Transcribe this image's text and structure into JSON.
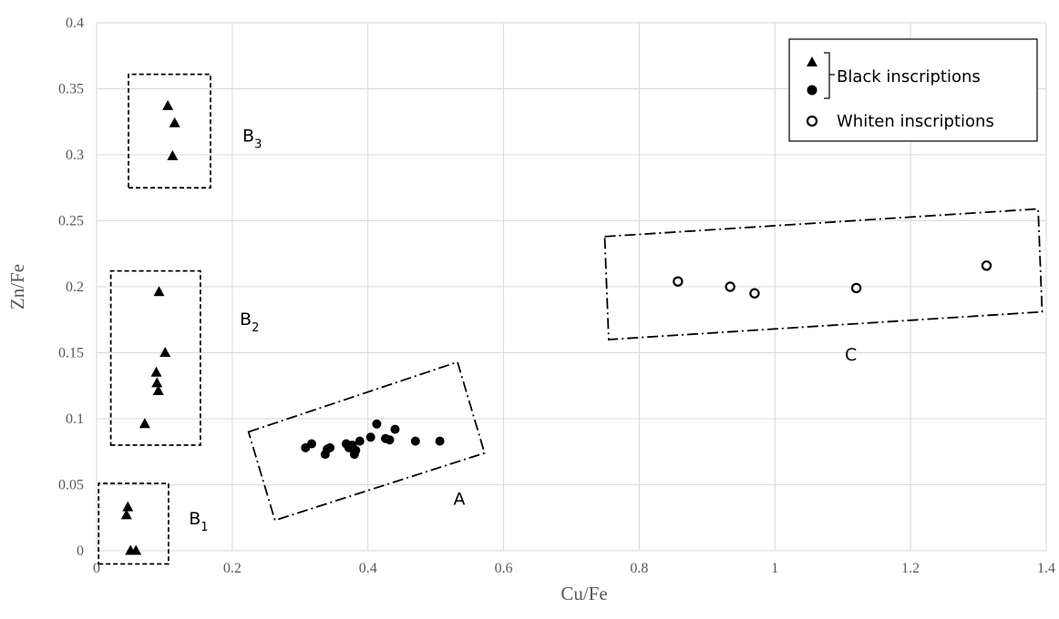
{
  "chart_data": {
    "type": "scatter",
    "xlabel": "Cu/Fe",
    "ylabel": "Zn/Fe",
    "xlim": [
      0,
      1.4
    ],
    "ylim": [
      0,
      0.4
    ],
    "x_ticks": [
      "0",
      "0.2",
      "0.4",
      "0.6",
      "0.8",
      "1",
      "1.2",
      "1.4"
    ],
    "y_ticks": [
      "0",
      "0.05",
      "0.1",
      "0.15",
      "0.2",
      "0.25",
      "0.3",
      "0.35",
      "0.4"
    ],
    "grid": true,
    "legend_position": "top-right",
    "legend": {
      "black_label": "Black inscriptions",
      "white_label": "Whiten inscriptions"
    },
    "series": [
      {
        "marker": "triangle",
        "fill": "#000000",
        "points": [
          [
            0.105,
            0.337
          ],
          [
            0.115,
            0.324
          ],
          [
            0.112,
            0.299
          ],
          [
            0.092,
            0.196
          ],
          [
            0.101,
            0.15
          ],
          [
            0.088,
            0.135
          ],
          [
            0.089,
            0.127
          ],
          [
            0.091,
            0.121
          ],
          [
            0.071,
            0.096
          ],
          [
            0.046,
            0.033
          ],
          [
            0.044,
            0.027
          ],
          [
            0.05,
            0.0
          ],
          [
            0.058,
            0.0
          ]
        ]
      },
      {
        "marker": "circle",
        "fill": "#000000",
        "points": [
          [
            0.308,
            0.078
          ],
          [
            0.317,
            0.081
          ],
          [
            0.337,
            0.073
          ],
          [
            0.34,
            0.077
          ],
          [
            0.344,
            0.078
          ],
          [
            0.368,
            0.081
          ],
          [
            0.372,
            0.078
          ],
          [
            0.377,
            0.08
          ],
          [
            0.38,
            0.073
          ],
          [
            0.382,
            0.076
          ],
          [
            0.388,
            0.083
          ],
          [
            0.404,
            0.086
          ],
          [
            0.413,
            0.096
          ],
          [
            0.426,
            0.085
          ],
          [
            0.432,
            0.084
          ],
          [
            0.44,
            0.092
          ],
          [
            0.47,
            0.083
          ],
          [
            0.506,
            0.083
          ]
        ]
      },
      {
        "marker": "circle",
        "fill": "#ffffff",
        "points": [
          [
            0.857,
            0.204
          ],
          [
            0.934,
            0.2
          ],
          [
            0.97,
            0.195
          ],
          [
            1.12,
            0.199
          ],
          [
            1.312,
            0.216
          ]
        ]
      }
    ],
    "groups": [
      {
        "label": "B",
        "sub": "3",
        "box": [
          [
            0.047,
            0.275
          ],
          [
            0.168,
            0.275
          ],
          [
            0.168,
            0.361
          ],
          [
            0.047,
            0.361
          ]
        ],
        "style": "dashed"
      },
      {
        "label": "B",
        "sub": "2",
        "box": [
          [
            0.021,
            0.08
          ],
          [
            0.153,
            0.08
          ],
          [
            0.153,
            0.212
          ],
          [
            0.021,
            0.212
          ]
        ],
        "style": "dashed"
      },
      {
        "label": "B",
        "sub": "1",
        "box": [
          [
            0.003,
            -0.01
          ],
          [
            0.106,
            -0.01
          ],
          [
            0.106,
            0.051
          ],
          [
            0.003,
            0.051
          ]
        ],
        "style": "dashed"
      },
      {
        "label": "A",
        "sub": "",
        "box": [
          [
            0.224,
            0.09
          ],
          [
            0.532,
            0.143
          ],
          [
            0.572,
            0.074
          ],
          [
            0.263,
            0.023
          ]
        ],
        "style": "dashdot"
      },
      {
        "label": "C",
        "sub": "",
        "box": [
          [
            0.749,
            0.238
          ],
          [
            1.388,
            0.259
          ],
          [
            1.394,
            0.181
          ],
          [
            0.755,
            0.16
          ]
        ],
        "style": "dashdot"
      }
    ],
    "group_labels": [
      {
        "label": "B",
        "sub": "3",
        "at": [
          0.215,
          0.31
        ]
      },
      {
        "label": "B",
        "sub": "2",
        "at": [
          0.211,
          0.171
        ]
      },
      {
        "label": "B",
        "sub": "1",
        "at": [
          0.136,
          0.02
        ]
      },
      {
        "label": "A",
        "sub": "",
        "at": [
          0.526,
          0.035
        ]
      },
      {
        "label": "C",
        "sub": "",
        "at": [
          1.103,
          0.144
        ]
      }
    ]
  }
}
